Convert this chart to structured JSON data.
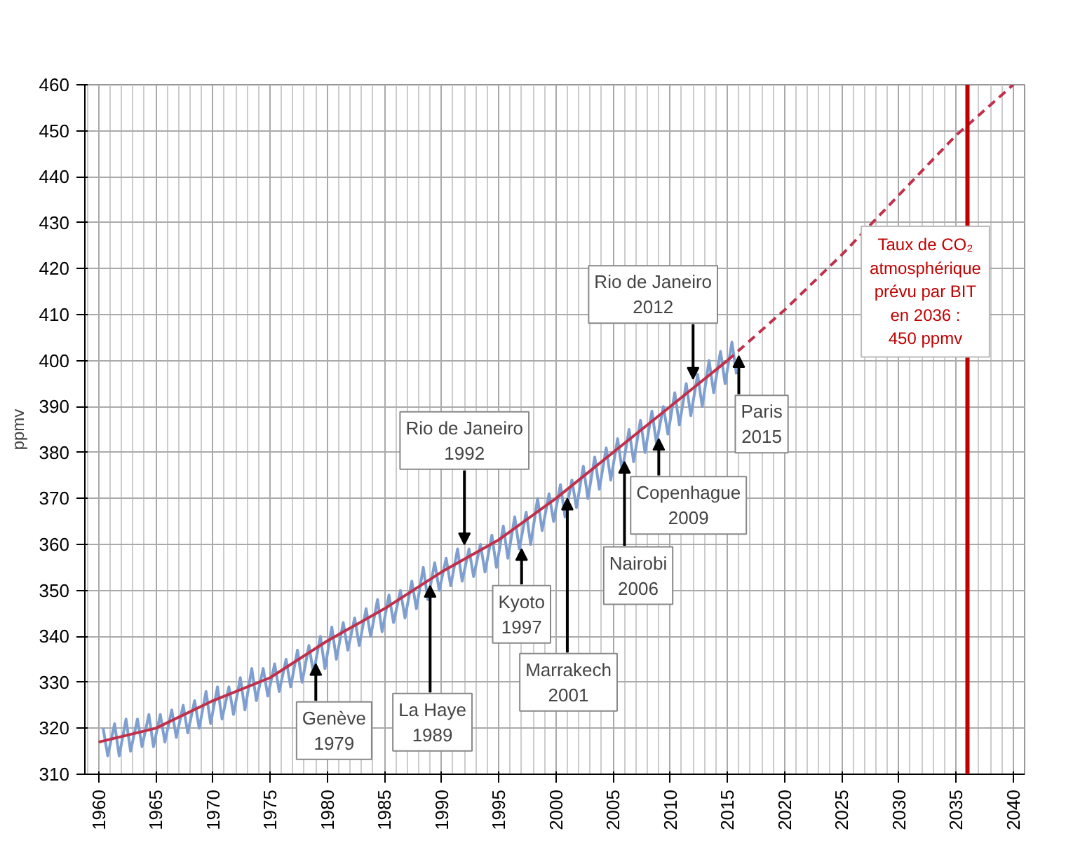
{
  "chart_data": {
    "type": "line",
    "ylabel": "ppmv",
    "xlim": [
      1958.8,
      2041
    ],
    "ylim": [
      310,
      460
    ],
    "xticks": [
      1960,
      1965,
      1970,
      1975,
      1980,
      1985,
      1990,
      1995,
      2000,
      2005,
      2010,
      2015,
      2020,
      2025,
      2030,
      2035,
      2040
    ],
    "yticks": [
      310,
      320,
      330,
      340,
      350,
      360,
      370,
      380,
      390,
      400,
      410,
      420,
      430,
      440,
      450,
      460
    ],
    "grid": true,
    "series": [
      {
        "color": "#7f9fd0",
        "line_style": "solid",
        "x": [
          1960.4,
          1960.8,
          1961.4,
          1961.8,
          1962.4,
          1962.8,
          1963.4,
          1963.8,
          1964.4,
          1964.8,
          1965.4,
          1965.8,
          1966.4,
          1966.8,
          1967.4,
          1967.8,
          1968.4,
          1968.8,
          1969.4,
          1969.8,
          1970.4,
          1970.8,
          1971.4,
          1971.8,
          1972.4,
          1972.8,
          1973.4,
          1973.8,
          1974.4,
          1974.8,
          1975.4,
          1975.8,
          1976.4,
          1976.8,
          1977.4,
          1977.8,
          1978.4,
          1978.8,
          1979.4,
          1979.8,
          1980.4,
          1980.8,
          1981.4,
          1981.8,
          1982.4,
          1982.8,
          1983.4,
          1983.8,
          1984.4,
          1984.8,
          1985.4,
          1985.8,
          1986.4,
          1986.8,
          1987.4,
          1987.8,
          1988.4,
          1988.8,
          1989.4,
          1989.8,
          1990.4,
          1990.8,
          1991.4,
          1991.8,
          1992.4,
          1992.8,
          1993.4,
          1993.8,
          1994.4,
          1994.8,
          1995.4,
          1995.8,
          1996.4,
          1996.8,
          1997.4,
          1997.8,
          1998.4,
          1998.8,
          1999.4,
          1999.8,
          2000.4,
          2000.8,
          2001.4,
          2001.8,
          2002.4,
          2002.8,
          2003.4,
          2003.8,
          2004.4,
          2004.8,
          2005.4,
          2005.8,
          2006.4,
          2006.8,
          2007.4,
          2007.8,
          2008.4,
          2008.8,
          2009.4,
          2009.8,
          2010.4,
          2010.8,
          2011.4,
          2011.8,
          2012.4,
          2012.8,
          2013.4,
          2013.8,
          2014.4,
          2014.8,
          2015.4,
          2015.8
        ],
        "values": [
          320,
          314,
          321,
          314,
          322,
          315,
          322,
          316,
          323,
          316,
          323,
          317,
          324,
          318,
          325,
          319,
          326,
          320,
          328,
          321,
          329,
          322,
          329,
          323,
          331,
          324,
          333,
          326,
          333,
          327,
          334,
          328,
          335,
          329,
          337,
          330,
          338,
          332,
          340,
          333,
          342,
          335,
          343,
          337,
          344,
          338,
          346,
          340,
          348,
          341,
          349,
          343,
          350,
          344,
          352,
          346,
          355,
          348,
          356,
          350,
          357,
          351,
          359,
          352,
          359,
          353,
          360,
          354,
          362,
          355,
          364,
          357,
          366,
          359,
          367,
          360,
          370,
          363,
          371,
          365,
          373,
          366,
          374,
          368,
          377,
          370,
          379,
          372,
          381,
          374,
          383,
          376,
          385,
          378,
          387,
          380,
          389,
          382,
          390,
          384,
          393,
          386,
          395,
          388,
          397,
          390,
          400,
          393,
          402,
          395,
          404,
          397
        ]
      },
      {
        "color": "#c0304a",
        "line_style": "solid",
        "x": [
          1960,
          1965,
          1970,
          1975,
          1980,
          1985,
          1990,
          1995,
          2000,
          2005,
          2010,
          2015
        ],
        "values": [
          317,
          320,
          326,
          331,
          339,
          346,
          354,
          361,
          370,
          380,
          390,
          400
        ]
      },
      {
        "color": "#c0304a",
        "line_style": "dashed",
        "x": [
          2015,
          2020,
          2025,
          2030,
          2035,
          2040
        ],
        "values": [
          400,
          411,
          423,
          436,
          449,
          460
        ]
      }
    ],
    "ref_lines": [
      {
        "axis": "x",
        "value": 2036,
        "color": "#c00000",
        "label": "Taux de CO₂\natmosphérique\nprévu par BIT\nen 2036 :\n450 ppmv"
      }
    ],
    "annotations": [
      {
        "text": "Genève\n1979",
        "x": 1979,
        "y": 334
      },
      {
        "text": "La Haye\n1989",
        "x": 1989,
        "y": 351
      },
      {
        "text": "Rio de Janeiro\n1992",
        "x": 1992,
        "y": 360
      },
      {
        "text": "Kyoto\n1997",
        "x": 1997,
        "y": 359
      },
      {
        "text": "Marrakech\n2001",
        "x": 2001,
        "y": 370
      },
      {
        "text": "Nairobi\n2006",
        "x": 2006,
        "y": 378
      },
      {
        "text": "Copenhague\n2009",
        "x": 2009,
        "y": 383
      },
      {
        "text": "Rio de Janeiro\n2012",
        "x": 2012,
        "y": 396
      },
      {
        "text": "Paris\n2015",
        "x": 2016,
        "y": 401
      }
    ]
  }
}
